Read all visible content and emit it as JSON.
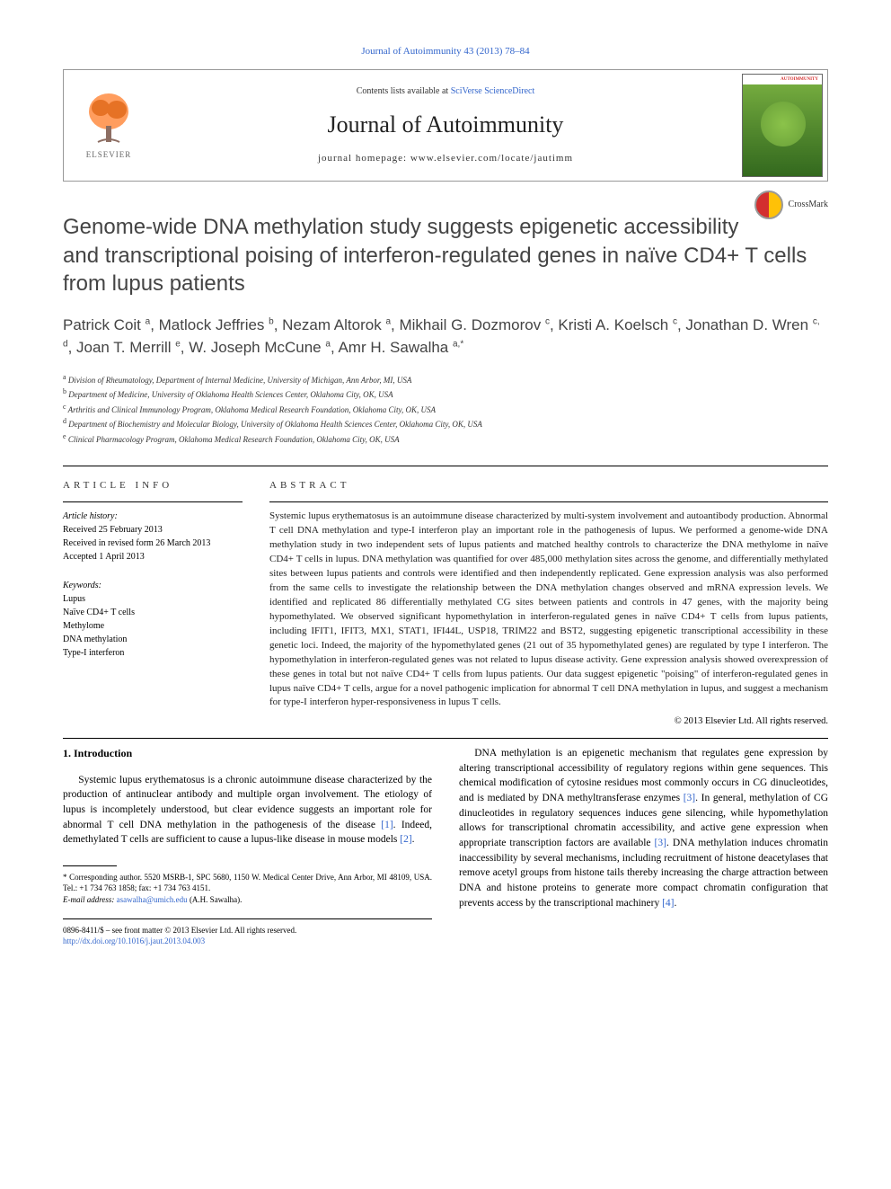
{
  "journal_ref": "Journal of Autoimmunity 43 (2013) 78–84",
  "header": {
    "contents_prefix": "Contents lists available at ",
    "contents_link": "SciVerse ScienceDirect",
    "journal_title": "Journal of Autoimmunity",
    "homepage_prefix": "journal homepage: ",
    "homepage_url": "www.elsevier.com/locate/jautimm",
    "elsevier_label": "ELSEVIER",
    "cover_label": "AUTOIMMUNITY"
  },
  "crossmark": "CrossMark",
  "title": "Genome-wide DNA methylation study suggests epigenetic accessibility and transcriptional poising of interferon-regulated genes in naïve CD4+ T cells from lupus patients",
  "authors_html": "Patrick Coit <sup>a</sup>, Matlock Jeffries <sup>b</sup>, Nezam Altorok <sup>a</sup>, Mikhail G. Dozmorov <sup>c</sup>, Kristi A. Koelsch <sup>c</sup>, Jonathan D. Wren <sup>c, d</sup>, Joan T. Merrill <sup>e</sup>, W. Joseph McCune <sup>a</sup>, Amr H. Sawalha <sup>a,*</sup>",
  "affiliations": [
    {
      "sup": "a",
      "text": "Division of Rheumatology, Department of Internal Medicine, University of Michigan, Ann Arbor, MI, USA"
    },
    {
      "sup": "b",
      "text": "Department of Medicine, University of Oklahoma Health Sciences Center, Oklahoma City, OK, USA"
    },
    {
      "sup": "c",
      "text": "Arthritis and Clinical Immunology Program, Oklahoma Medical Research Foundation, Oklahoma City, OK, USA"
    },
    {
      "sup": "d",
      "text": "Department of Biochemistry and Molecular Biology, University of Oklahoma Health Sciences Center, Oklahoma City, OK, USA"
    },
    {
      "sup": "e",
      "text": "Clinical Pharmacology Program, Oklahoma Medical Research Foundation, Oklahoma City, OK, USA"
    }
  ],
  "article_info": {
    "label": "ARTICLE INFO",
    "history_head": "Article history:",
    "received": "Received 25 February 2013",
    "revised": "Received in revised form 26 March 2013",
    "accepted": "Accepted 1 April 2013",
    "keywords_head": "Keywords:",
    "keywords": [
      "Lupus",
      "Naïve CD4+ T cells",
      "Methylome",
      "DNA methylation",
      "Type-I interferon"
    ]
  },
  "abstract": {
    "label": "ABSTRACT",
    "text": "Systemic lupus erythematosus is an autoimmune disease characterized by multi-system involvement and autoantibody production. Abnormal T cell DNA methylation and type-I interferon play an important role in the pathogenesis of lupus. We performed a genome-wide DNA methylation study in two independent sets of lupus patients and matched healthy controls to characterize the DNA methylome in naïve CD4+ T cells in lupus. DNA methylation was quantified for over 485,000 methylation sites across the genome, and differentially methylated sites between lupus patients and controls were identified and then independently replicated. Gene expression analysis was also performed from the same cells to investigate the relationship between the DNA methylation changes observed and mRNA expression levels. We identified and replicated 86 differentially methylated CG sites between patients and controls in 47 genes, with the majority being hypomethylated. We observed significant hypomethylation in interferon-regulated genes in naïve CD4+ T cells from lupus patients, including IFIT1, IFIT3, MX1, STAT1, IFI44L, USP18, TRIM22 and BST2, suggesting epigenetic transcriptional accessibility in these genetic loci. Indeed, the majority of the hypomethylated genes (21 out of 35 hypomethylated genes) are regulated by type I interferon. The hypomethylation in interferon-regulated genes was not related to lupus disease activity. Gene expression analysis showed overexpression of these genes in total but not naïve CD4+ T cells from lupus patients. Our data suggest epigenetic \"poising\" of interferon-regulated genes in lupus naïve CD4+ T cells, argue for a novel pathogenic implication for abnormal T cell DNA methylation in lupus, and suggest a mechanism for type-I interferon hyper-responsiveness in lupus T cells.",
    "copyright": "© 2013 Elsevier Ltd. All rights reserved."
  },
  "intro": {
    "head": "1. Introduction",
    "col1_p1": "Systemic lupus erythematosus is a chronic autoimmune disease characterized by the production of antinuclear antibody and multiple organ involvement. The etiology of lupus is incompletely understood, but clear evidence suggests an important role for abnormal T cell DNA methylation in the pathogenesis of the disease ",
    "col1_ref1": "[1]",
    "col1_p1b": ". Indeed, demethylated T cells are sufficient to cause a lupus-like disease in mouse models ",
    "col1_ref2": "[2]",
    "col1_p1c": ".",
    "col2_p1": "DNA methylation is an epigenetic mechanism that regulates gene expression by altering transcriptional accessibility of regulatory regions within gene sequences. This chemical modification of cytosine residues most commonly occurs in CG dinucleotides, and is mediated by DNA methyltransferase enzymes ",
    "col2_ref3": "[3]",
    "col2_p1b": ". In general, methylation of CG dinucleotides in regulatory sequences induces gene silencing, while hypomethylation allows for transcriptional chromatin accessibility, and active gene expression when appropriate transcription factors are available ",
    "col2_ref3b": "[3]",
    "col2_p1c": ". DNA methylation induces chromatin inaccessibility by several mechanisms, including recruitment of histone deacetylases that remove acetyl groups from histone tails thereby increasing the charge attraction between DNA and histone proteins to generate more compact chromatin configuration that prevents access by the transcriptional machinery ",
    "col2_ref4": "[4]",
    "col2_p1d": "."
  },
  "footnote": {
    "corr": "* Corresponding author. 5520 MSRB-1, SPC 5680, 1150 W. Medical Center Drive, Ann Arbor, MI 48109, USA. Tel.: +1 734 763 1858; fax: +1 734 763 4151.",
    "email_label": "E-mail address: ",
    "email": "asawalha@umich.edu",
    "email_suffix": " (A.H. Sawalha)."
  },
  "bottom": {
    "issn": "0896-8411/$ – see front matter © 2013 Elsevier Ltd. All rights reserved.",
    "doi": "http://dx.doi.org/10.1016/j.jaut.2013.04.003"
  },
  "colors": {
    "link": "#3366cc",
    "text": "#000000",
    "elsevier_orange": "#ff6600"
  }
}
